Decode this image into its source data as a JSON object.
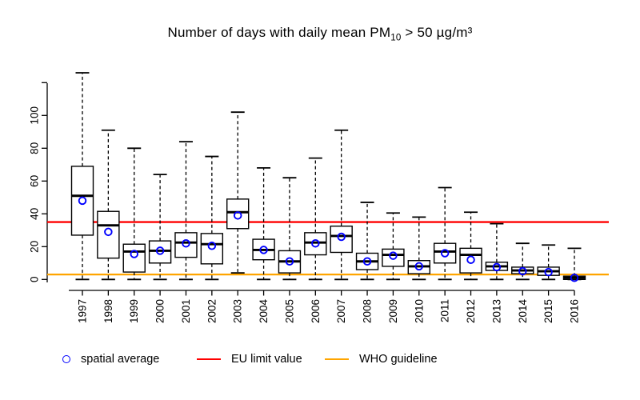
{
  "title": {
    "part1": "Number of days with daily mean PM",
    "sub": "10",
    "part2": " > 50 µg/m³"
  },
  "legend": [
    {
      "label": "spatial average",
      "marker": "open-circle",
      "color": "#0000ff"
    },
    {
      "label": "EU limit value",
      "marker": "line",
      "color": "#ff0000"
    },
    {
      "label": "WHO guideline",
      "marker": "line",
      "color": "#ffa500"
    }
  ],
  "chart_data": {
    "type": "boxplot",
    "title": "Number of days with daily mean PM10 > 50 µg/m³",
    "xlabel": "",
    "ylabel": "",
    "ylim": [
      0,
      122
    ],
    "grid": false,
    "legend_position": "bottom",
    "y_axis": {
      "ticks": [
        0,
        20,
        40,
        60,
        80,
        100
      ],
      "extra_unlabeled_tick": 120
    },
    "categories": [
      "1997",
      "1998",
      "1999",
      "2000",
      "2001",
      "2002",
      "2003",
      "2004",
      "2005",
      "2006",
      "2007",
      "2008",
      "2009",
      "2010",
      "2011",
      "2012",
      "2013",
      "2014",
      "2015",
      "2016"
    ],
    "series": [
      {
        "year": "1997",
        "min": 0,
        "q1": 27,
        "median": 51,
        "q3": 69,
        "max": 126,
        "mean": 48
      },
      {
        "year": "1998",
        "min": 0,
        "q1": 13,
        "median": 33,
        "q3": 41.5,
        "max": 91,
        "mean": 29
      },
      {
        "year": "1999",
        "min": 0,
        "q1": 4.5,
        "median": 17,
        "q3": 21.5,
        "max": 80,
        "mean": 15.5
      },
      {
        "year": "2000",
        "min": 0,
        "q1": 10,
        "median": 17.5,
        "q3": 23.5,
        "max": 64,
        "mean": 17.5
      },
      {
        "year": "2001",
        "min": 0,
        "q1": 13.5,
        "median": 22.5,
        "q3": 28.5,
        "max": 84,
        "mean": 22
      },
      {
        "year": "2002",
        "min": 0,
        "q1": 9.5,
        "median": 21.5,
        "q3": 28,
        "max": 75,
        "mean": 20.5
      },
      {
        "year": "2003",
        "min": 4,
        "q1": 31,
        "median": 41,
        "q3": 49,
        "max": 102,
        "mean": 39
      },
      {
        "year": "2004",
        "min": 0,
        "q1": 12,
        "median": 18,
        "q3": 24.5,
        "max": 68,
        "mean": 18
      },
      {
        "year": "2005",
        "min": 0,
        "q1": 4,
        "median": 11,
        "q3": 17.5,
        "max": 62,
        "mean": 11
      },
      {
        "year": "2006",
        "min": 0,
        "q1": 15,
        "median": 22.5,
        "q3": 28.5,
        "max": 74,
        "mean": 22
      },
      {
        "year": "2007",
        "min": 0,
        "q1": 16.5,
        "median": 26.5,
        "q3": 32.5,
        "max": 91,
        "mean": 26
      },
      {
        "year": "2008",
        "min": 0,
        "q1": 6,
        "median": 11,
        "q3": 16,
        "max": 47,
        "mean": 11
      },
      {
        "year": "2009",
        "min": 0,
        "q1": 8,
        "median": 15,
        "q3": 18.5,
        "max": 40.5,
        "mean": 14.5
      },
      {
        "year": "2010",
        "min": 0,
        "q1": 3.5,
        "median": 8,
        "q3": 11.5,
        "max": 38,
        "mean": 8
      },
      {
        "year": "2011",
        "min": 0,
        "q1": 10,
        "median": 17,
        "q3": 22,
        "max": 56,
        "mean": 16
      },
      {
        "year": "2012",
        "min": 0,
        "q1": 4,
        "median": 15,
        "q3": 19,
        "max": 41,
        "mean": 12
      },
      {
        "year": "2013",
        "min": 0,
        "q1": 5.5,
        "median": 8,
        "q3": 10.5,
        "max": 34,
        "mean": 7.5
      },
      {
        "year": "2014",
        "min": 0,
        "q1": 3.5,
        "median": 5.5,
        "q3": 7.5,
        "max": 22,
        "mean": 5
      },
      {
        "year": "2015",
        "min": 0,
        "q1": 2.5,
        "median": 5,
        "q3": 7.5,
        "max": 21,
        "mean": 4.5
      },
      {
        "year": "2016",
        "min": 0,
        "q1": 0,
        "median": 1,
        "q3": 2,
        "max": 19,
        "mean": 1
      }
    ],
    "reference_lines": [
      {
        "name": "eu-limit",
        "label": "EU limit value",
        "value": 35,
        "color": "#ff0000"
      },
      {
        "name": "who-guideline",
        "label": "WHO guideline",
        "value": 3,
        "color": "#ffa500"
      }
    ],
    "mean_marker_color": "#0000ff",
    "box_color": "#000000"
  }
}
